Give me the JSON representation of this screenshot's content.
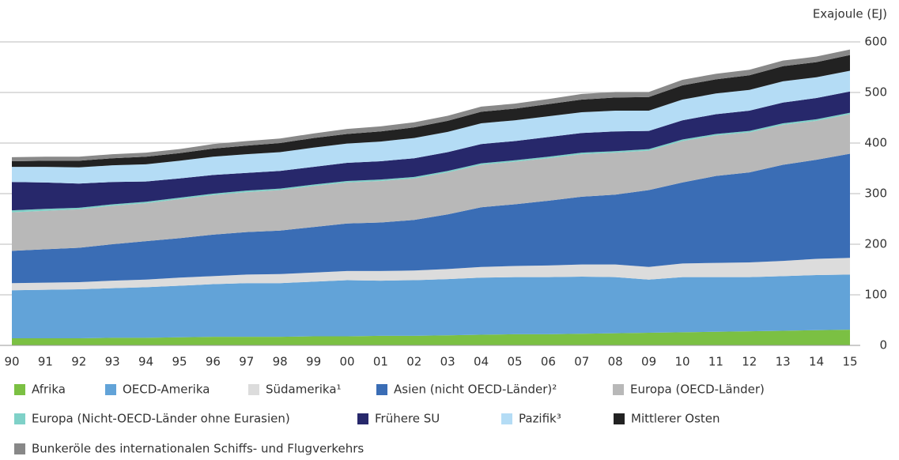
{
  "chart_data": {
    "type": "stacked-area",
    "axis_label": "Exajoule (EJ)",
    "categories": [
      "90",
      "91",
      "92",
      "93",
      "94",
      "95",
      "96",
      "97",
      "98",
      "99",
      "00",
      "01",
      "02",
      "03",
      "04",
      "05",
      "06",
      "07",
      "08",
      "09",
      "10",
      "11",
      "12",
      "13",
      "14",
      "15"
    ],
    "ylim": [
      0,
      600
    ],
    "yticks": [
      0,
      100,
      200,
      300,
      400,
      500,
      600
    ],
    "grid": true,
    "series": [
      {
        "name": "Afrika",
        "color": "#7bc043",
        "values": [
          14,
          14,
          14,
          15,
          15,
          16,
          17,
          17,
          17,
          18,
          18,
          19,
          19,
          20,
          21,
          22,
          22,
          23,
          24,
          25,
          26,
          27,
          28,
          29,
          30,
          31
        ]
      },
      {
        "name": "OECD-Amerika",
        "color": "#62a3d8",
        "values": [
          95,
          96,
          97,
          98,
          100,
          102,
          104,
          106,
          106,
          108,
          111,
          109,
          110,
          111,
          113,
          113,
          113,
          113,
          111,
          105,
          109,
          108,
          107,
          108,
          109,
          109
        ]
      },
      {
        "name": "Südamerika¹",
        "color": "#dcdcdc",
        "values": [
          14,
          14,
          14,
          15,
          15,
          16,
          16,
          17,
          18,
          18,
          18,
          19,
          19,
          20,
          21,
          22,
          23,
          24,
          25,
          25,
          27,
          28,
          29,
          30,
          32,
          33
        ]
      },
      {
        "name": "Asien (nicht OECD-Länder)²",
        "color": "#3a6db5",
        "values": [
          64,
          66,
          68,
          72,
          76,
          78,
          82,
          84,
          86,
          90,
          94,
          96,
          100,
          108,
          118,
          122,
          128,
          134,
          138,
          152,
          160,
          172,
          178,
          190,
          196,
          206
        ]
      },
      {
        "name": "Europa (OECD-Länder)",
        "color": "#b8b8b8",
        "values": [
          76,
          76,
          76,
          76,
          75,
          77,
          78,
          79,
          80,
          81,
          81,
          82,
          82,
          83,
          84,
          84,
          84,
          84,
          83,
          78,
          82,
          80,
          79,
          79,
          77,
          78
        ]
      },
      {
        "name": "Europa (Nicht-OECD-Länder ohne Eurasien)",
        "color": "#7fd1c8",
        "values": [
          4,
          4,
          3,
          3,
          3,
          3,
          3,
          3,
          3,
          3,
          3,
          3,
          3,
          3,
          3,
          3,
          3,
          3,
          3,
          3,
          3,
          3,
          3,
          3,
          3,
          3
        ]
      },
      {
        "name": "Frühere SU",
        "color": "#27286b",
        "values": [
          56,
          52,
          48,
          44,
          40,
          38,
          37,
          35,
          35,
          35,
          36,
          36,
          37,
          37,
          38,
          38,
          39,
          39,
          39,
          36,
          38,
          39,
          40,
          41,
          42,
          42
        ]
      },
      {
        "name": "Pazifik³",
        "color": "#b4dcf5",
        "values": [
          30,
          31,
          32,
          33,
          34,
          35,
          36,
          37,
          37,
          38,
          38,
          39,
          40,
          40,
          41,
          41,
          41,
          41,
          41,
          40,
          41,
          41,
          41,
          42,
          41,
          41
        ]
      },
      {
        "name": "Mittlerer Osten",
        "color": "#222222",
        "values": [
          11,
          12,
          13,
          14,
          15,
          15,
          16,
          17,
          18,
          19,
          19,
          20,
          21,
          22,
          23,
          23,
          24,
          25,
          26,
          27,
          28,
          28,
          29,
          30,
          30,
          31
        ]
      },
      {
        "name": "Bunkeröle des internationalen Schiffs- und Flugverkehrs",
        "color": "#888888",
        "values": [
          8,
          8,
          8,
          8,
          8,
          8,
          9,
          9,
          9,
          9,
          10,
          10,
          10,
          10,
          10,
          10,
          10,
          11,
          11,
          10,
          11,
          11,
          11,
          11,
          11,
          11
        ]
      }
    ]
  }
}
